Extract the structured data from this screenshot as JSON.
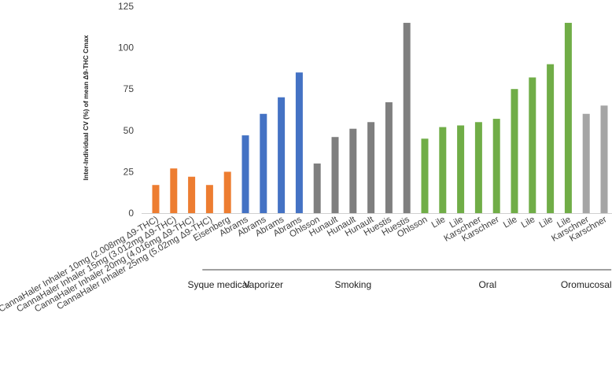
{
  "chart_data": {
    "type": "bar",
    "ylabel": "Inter-Individual CV (%) of mean Δ9-THC Cmax",
    "ylim": [
      0,
      125
    ],
    "yticks": [
      0,
      25,
      50,
      75,
      100,
      125
    ],
    "grid": false,
    "colors": {
      "orange": "#ED7D31",
      "blue": "#4472C4",
      "dark_gray": "#7F7F7F",
      "green": "#70AD47",
      "light_gray": "#A5A5A5"
    },
    "bars": [
      {
        "label": "CannaHaler Inhaler 10mg (2.008mg Δ9-THC)",
        "value": 17,
        "color": "orange"
      },
      {
        "label": "CannaHaler Inhaler 15mg (3.012mg Δ9-THC)",
        "value": 27,
        "color": "orange"
      },
      {
        "label": "CannaHaler Inhaler 20mg (4.016mg Δ9-THC)",
        "value": 22,
        "color": "orange"
      },
      {
        "label": "CannaHaler Inhaler 25mg (5.02mg Δ9-THC)",
        "value": 17,
        "color": "orange"
      },
      {
        "label": "Eisenberg",
        "value": 25,
        "color": "orange"
      },
      {
        "label": "Abrams",
        "value": 47,
        "color": "blue"
      },
      {
        "label": "Abrams",
        "value": 60,
        "color": "blue"
      },
      {
        "label": "Abrams",
        "value": 70,
        "color": "blue"
      },
      {
        "label": "Abrams",
        "value": 85,
        "color": "blue"
      },
      {
        "label": "Ohlsson",
        "value": 30,
        "color": "dark_gray"
      },
      {
        "label": "Hunault",
        "value": 46,
        "color": "dark_gray"
      },
      {
        "label": "Hunault",
        "value": 51,
        "color": "dark_gray"
      },
      {
        "label": "Hunault",
        "value": 55,
        "color": "dark_gray"
      },
      {
        "label": "Huestis",
        "value": 67,
        "color": "dark_gray"
      },
      {
        "label": "Huestis",
        "value": 115,
        "color": "dark_gray"
      },
      {
        "label": "Ohlsson",
        "value": 45,
        "color": "green"
      },
      {
        "label": "Lile",
        "value": 52,
        "color": "green"
      },
      {
        "label": "Lile",
        "value": 53,
        "color": "green"
      },
      {
        "label": "Karschner",
        "value": 55,
        "color": "green"
      },
      {
        "label": "Karschner",
        "value": 57,
        "color": "green"
      },
      {
        "label": "Lile",
        "value": 75,
        "color": "green"
      },
      {
        "label": "Lile",
        "value": 82,
        "color": "green"
      },
      {
        "label": "Lile",
        "value": 90,
        "color": "green"
      },
      {
        "label": "Lile",
        "value": 115,
        "color": "green"
      },
      {
        "label": "Karschner",
        "value": 60,
        "color": "light_gray"
      },
      {
        "label": "Karschner",
        "value": 65,
        "color": "light_gray"
      }
    ],
    "groups": [
      {
        "label": "Syque medical",
        "first": 4,
        "last": 4
      },
      {
        "label": "Vaporizer",
        "first": 5,
        "last": 8
      },
      {
        "label": "Smoking",
        "first": 9,
        "last": 14
      },
      {
        "label": "Oral",
        "first": 15,
        "last": 23
      },
      {
        "label": "Oromucosal",
        "first": 24,
        "last": 25
      }
    ]
  }
}
